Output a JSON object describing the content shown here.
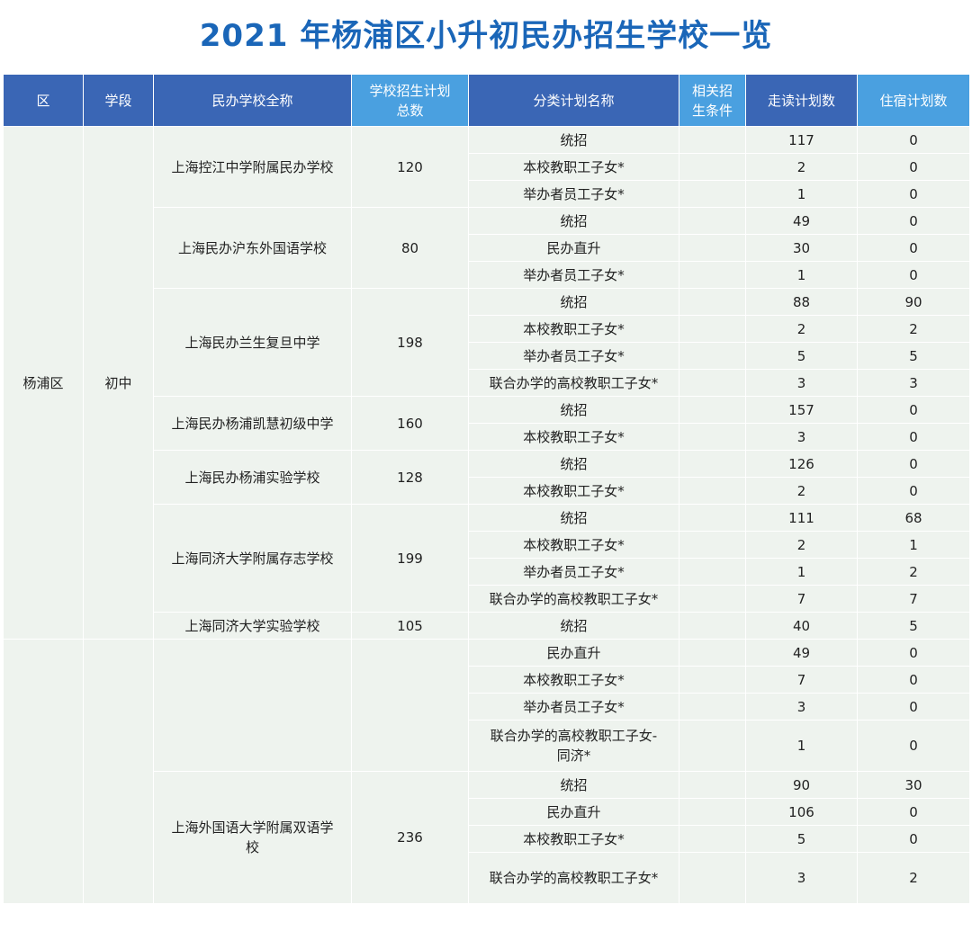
{
  "title": "2021 年杨浦区小升初民办招生学校一览",
  "headers": {
    "district": "区",
    "stage": "学段",
    "school_name": "民办学校全称",
    "total_line1": "学校招生计划",
    "total_line2": "总数",
    "category": "分类计划名称",
    "conditions_line1": "相关招",
    "conditions_line2": "生条件",
    "day": "走读计划数",
    "boarding": "住宿计划数"
  },
  "district": "杨浦区",
  "stage": "初中",
  "schools": [
    {
      "name": "上海控江中学附属民办学校",
      "total": "120",
      "rows": [
        {
          "category": "统招",
          "day": "117",
          "boarding": "0"
        },
        {
          "category": "本校教职工子女*",
          "day": "2",
          "boarding": "0"
        },
        {
          "category": "举办者员工子女*",
          "day": "1",
          "boarding": "0"
        }
      ]
    },
    {
      "name": "上海民办沪东外国语学校",
      "total": "80",
      "rows": [
        {
          "category": "统招",
          "day": "49",
          "boarding": "0"
        },
        {
          "category": "民办直升",
          "day": "30",
          "boarding": "0"
        },
        {
          "category": "举办者员工子女*",
          "day": "1",
          "boarding": "0"
        }
      ]
    },
    {
      "name": "上海民办兰生复旦中学",
      "total": "198",
      "rows": [
        {
          "category": "统招",
          "day": "88",
          "boarding": "90"
        },
        {
          "category": "本校教职工子女*",
          "day": "2",
          "boarding": "2"
        },
        {
          "category": "举办者员工子女*",
          "day": "5",
          "boarding": "5"
        },
        {
          "category": "联合办学的高校教职工子女*",
          "day": "3",
          "boarding": "3"
        }
      ]
    },
    {
      "name": "上海民办杨浦凯慧初级中学",
      "total": "160",
      "rows": [
        {
          "category": "统招",
          "day": "157",
          "boarding": "0"
        },
        {
          "category": "本校教职工子女*",
          "day": "3",
          "boarding": "0"
        }
      ]
    },
    {
      "name": "上海民办杨浦实验学校",
      "total": "128",
      "rows": [
        {
          "category": "统招",
          "day": "126",
          "boarding": "0"
        },
        {
          "category": "本校教职工子女*",
          "day": "2",
          "boarding": "0"
        }
      ]
    },
    {
      "name": "上海同济大学附属存志学校",
      "total": "199",
      "rows": [
        {
          "category": "统招",
          "day": "111",
          "boarding": "68"
        },
        {
          "category": "本校教职工子女*",
          "day": "2",
          "boarding": "1"
        },
        {
          "category": "举办者员工子女*",
          "day": "1",
          "boarding": "2"
        },
        {
          "category": "联合办学的高校教职工子女*",
          "day": "7",
          "boarding": "7"
        }
      ]
    },
    {
      "name": "上海同济大学实验学校",
      "total": "105",
      "rows": [
        {
          "category": "统招",
          "day": "40",
          "boarding": "5"
        }
      ]
    },
    {
      "name": "",
      "total": "",
      "rows": [
        {
          "category": "民办直升",
          "day": "49",
          "boarding": "0"
        },
        {
          "category": "本校教职工子女*",
          "day": "7",
          "boarding": "0"
        },
        {
          "category": "举办者员工子女*",
          "day": "3",
          "boarding": "0"
        },
        {
          "category": "联合办学的高校教职工子女-",
          "category2": "同济*",
          "day": "1",
          "boarding": "0"
        }
      ]
    },
    {
      "name": "上海外国语大学附属双语学",
      "name2": "校",
      "total": "236",
      "rows": [
        {
          "category": "统招",
          "day": "90",
          "boarding": "30"
        },
        {
          "category": "民办直升",
          "day": "106",
          "boarding": "0"
        },
        {
          "category": "本校教职工子女*",
          "day": "5",
          "boarding": "0"
        },
        {
          "category": "联合办学的高校教职工子女*",
          "day": "3",
          "boarding": "2"
        }
      ]
    }
  ]
}
